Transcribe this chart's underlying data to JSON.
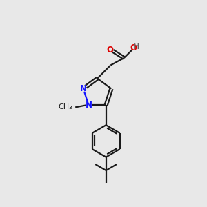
{
  "background_color": "#e8e8e8",
  "bond_color": "#1a1a1a",
  "N_color": "#1414ff",
  "O_color": "#dd0000",
  "H_color": "#666666",
  "line_width": 1.6,
  "font_size": 8.5,
  "fig_size": [
    3.0,
    3.0
  ],
  "dpi": 100,
  "xlim": [
    0,
    10
  ],
  "ylim": [
    0,
    10
  ]
}
